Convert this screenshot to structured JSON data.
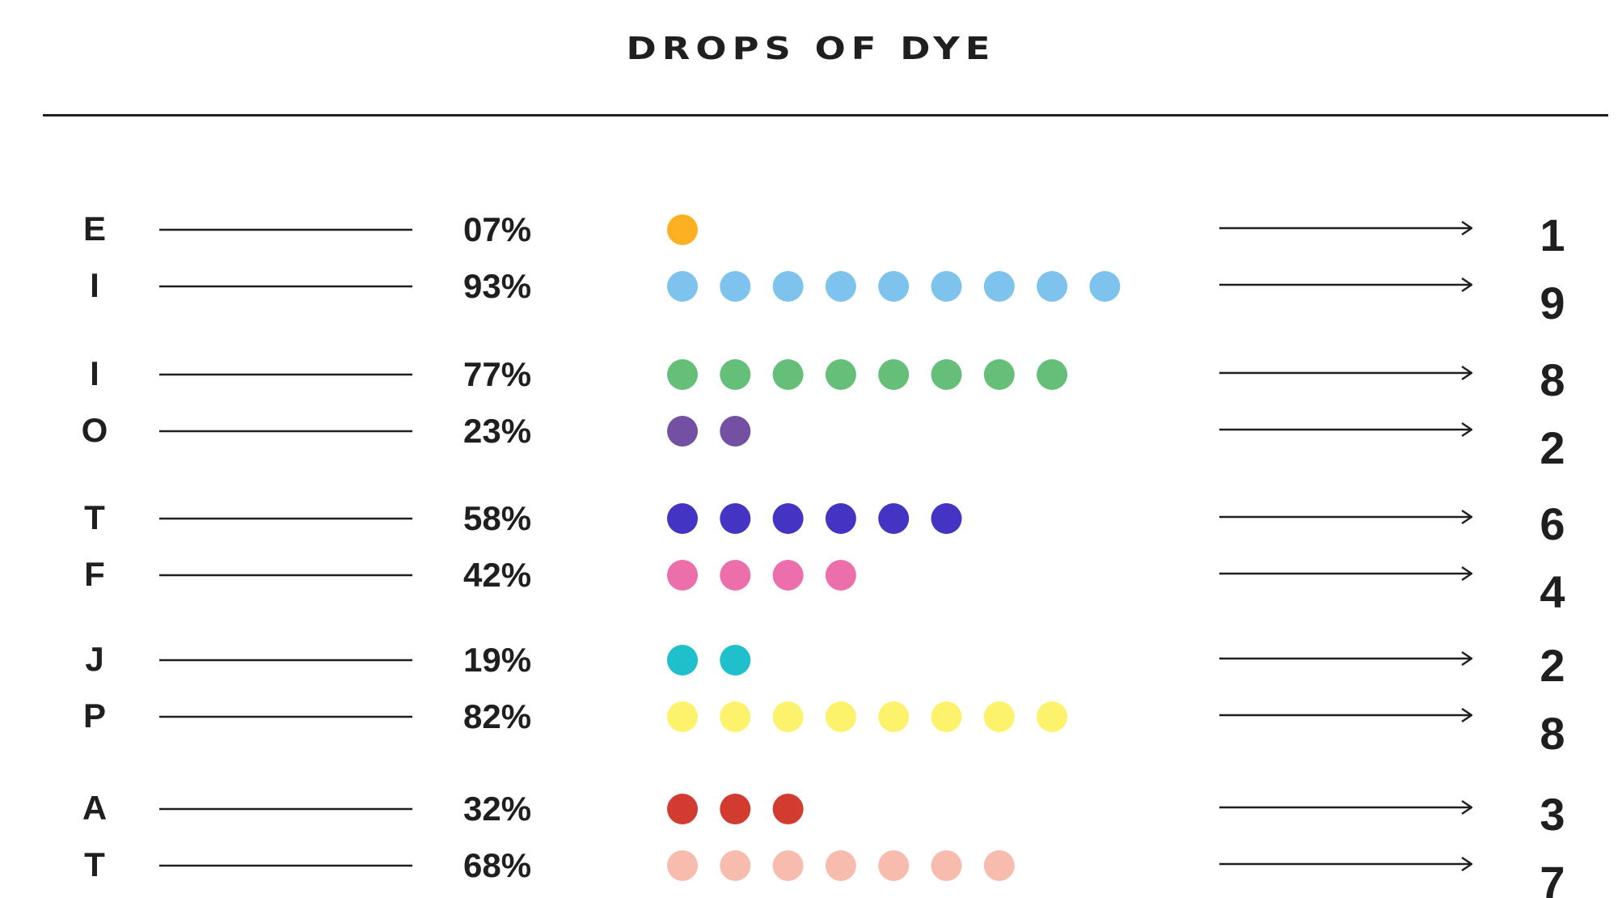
{
  "title": "DROPS OF DYE",
  "chart_data": {
    "type": "dot-matrix",
    "title": "DROPS OF DYE",
    "groups": [
      {
        "rows": [
          {
            "letter": "E",
            "percent": "07%",
            "count": 1,
            "color": "#fdb022"
          },
          {
            "letter": "I",
            "percent": "93%",
            "count": 9,
            "color": "#7ec3ee"
          }
        ]
      },
      {
        "rows": [
          {
            "letter": "I",
            "percent": "77%",
            "count": 8,
            "color": "#66bf79"
          },
          {
            "letter": "O",
            "percent": "23%",
            "count": 2,
            "color": "#7450a2"
          }
        ]
      },
      {
        "rows": [
          {
            "letter": "T",
            "percent": "58%",
            "count": 6,
            "color": "#4334c4"
          },
          {
            "letter": "F",
            "percent": "42%",
            "count": 4,
            "color": "#ec6fab"
          }
        ]
      },
      {
        "rows": [
          {
            "letter": "J",
            "percent": "19%",
            "count": 2,
            "color": "#1fbfcb"
          },
          {
            "letter": "P",
            "percent": "82%",
            "count": 8,
            "color": "#fdf26c"
          }
        ]
      },
      {
        "rows": [
          {
            "letter": "A",
            "percent": "32%",
            "count": 3,
            "color": "#d23b2f"
          },
          {
            "letter": "T",
            "percent": "68%",
            "count": 7,
            "color": "#f8bcaf"
          }
        ]
      }
    ]
  }
}
